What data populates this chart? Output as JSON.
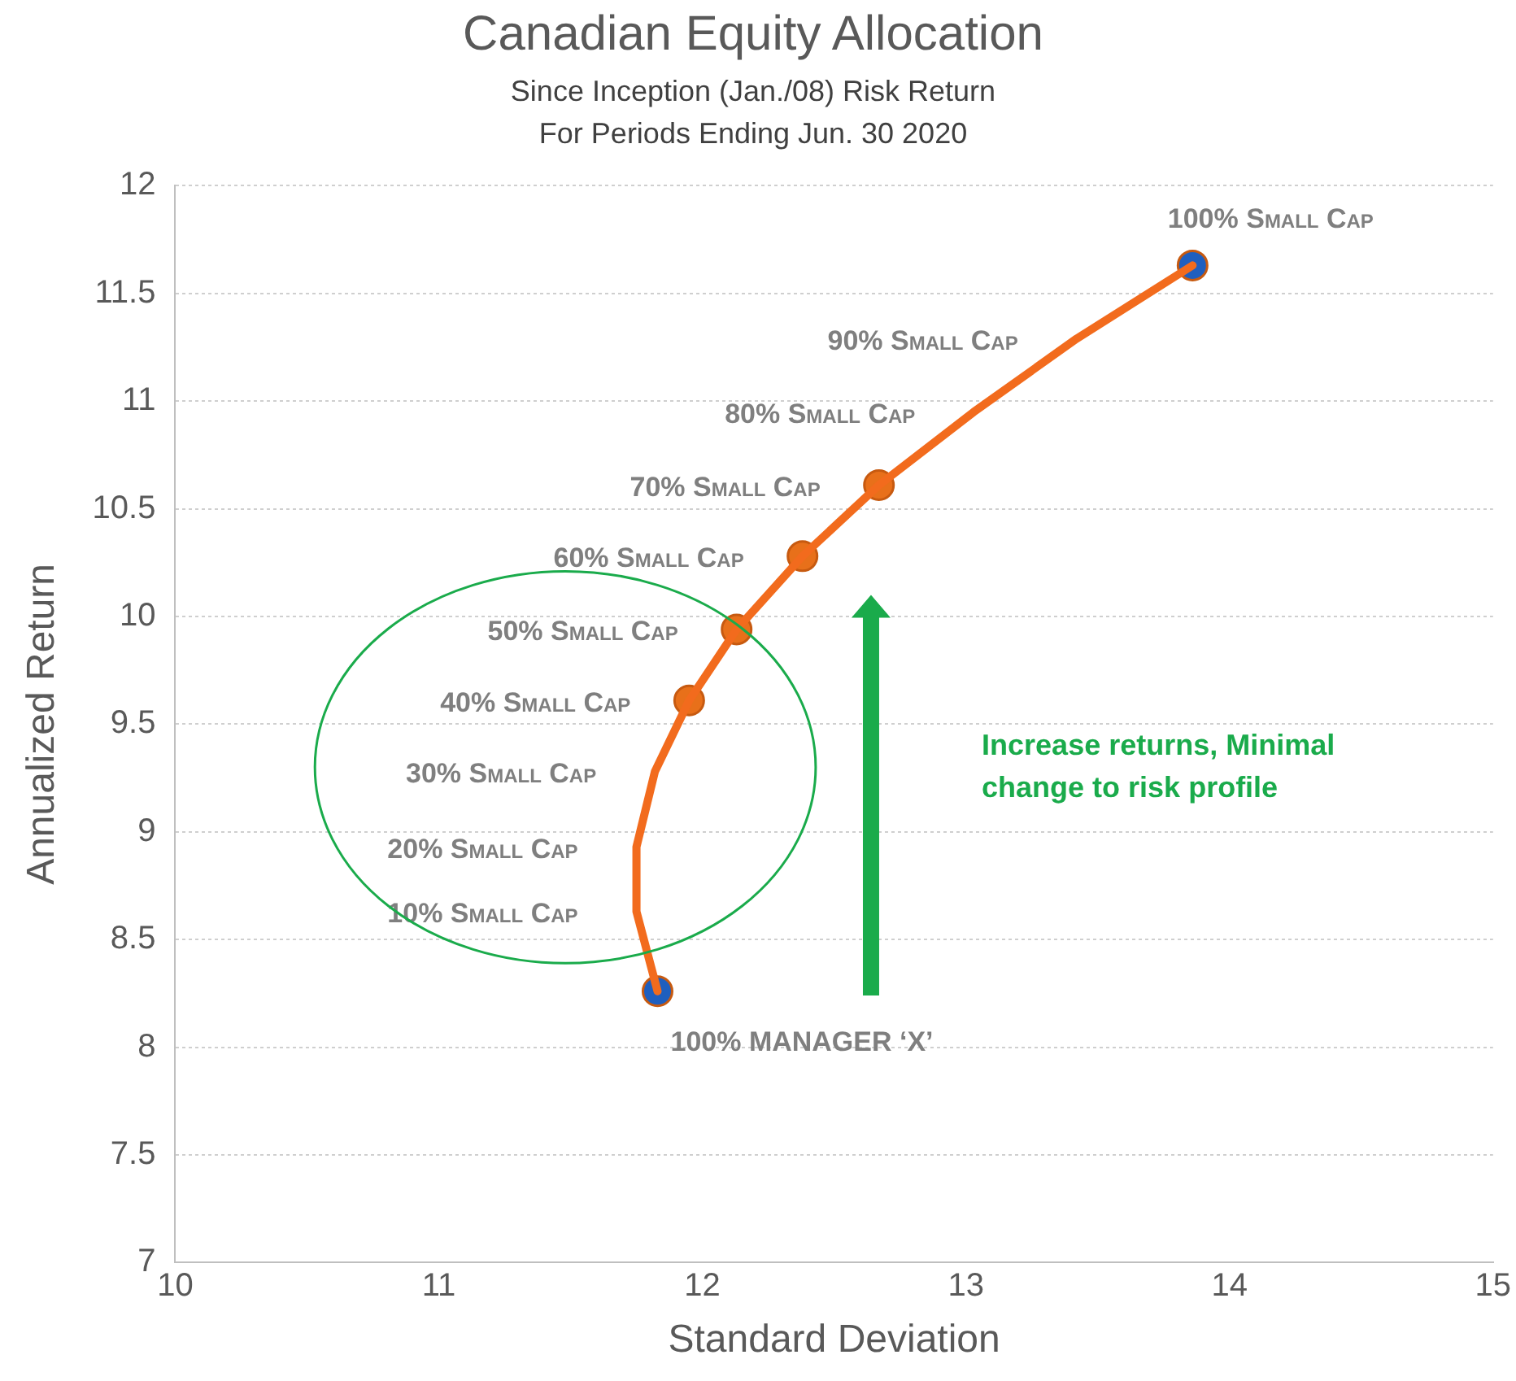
{
  "chart_data": {
    "type": "line",
    "title": "Canadian Equity Allocation",
    "subtitle": "Since Inception (Jan./08) Risk Return\nFor Periods Ending Jun. 30 2020",
    "xlabel": "Standard Deviation",
    "ylabel": "Annualized Return",
    "x": [
      11.83,
      11.75,
      11.75,
      11.82,
      11.95,
      12.13,
      12.38,
      12.67,
      13.03,
      13.42,
      13.86
    ],
    "series": [
      {
        "color": "#f26b1d",
        "marker": "none",
        "values": [
          8.26,
          8.63,
          8.93,
          9.28,
          9.61,
          9.94,
          10.28,
          10.61,
          10.95,
          11.29,
          11.63
        ]
      },
      {
        "type": "scatter",
        "marker": "circle",
        "x": [
          11.83,
          11.95,
          12.13,
          12.38,
          12.67,
          13.86
        ],
        "colors": [
          "#1f5fbf",
          "#e8701a",
          "#e8701a",
          "#e8701a",
          "#e8701a",
          "#1f5fbf"
        ],
        "values": [
          8.26,
          9.61,
          9.94,
          10.28,
          10.61,
          11.63
        ]
      }
    ],
    "xlim": [
      10,
      15
    ],
    "xticks": [
      10,
      11,
      12,
      13,
      14,
      15
    ],
    "ylim": [
      7,
      12
    ],
    "yticks": [
      7,
      7.5,
      8,
      8.5,
      9,
      9.5,
      10,
      10.5,
      11,
      11.5,
      12
    ],
    "grid": "y",
    "legend": false,
    "line_style": "solid",
    "annotations": [
      {
        "text": "100% MANAGER ‘X’",
        "x": 11.83,
        "y": 8.26
      },
      {
        "text": "10% Small Cap",
        "x": 11.75,
        "y": 8.63
      },
      {
        "text": "20% Small Cap",
        "x": 11.75,
        "y": 8.93
      },
      {
        "text": "30% Small Cap",
        "x": 11.82,
        "y": 9.28
      },
      {
        "text": "40% Small Cap",
        "x": 11.95,
        "y": 9.61
      },
      {
        "text": "50% Small Cap",
        "x": 12.13,
        "y": 9.94
      },
      {
        "text": "60% Small Cap",
        "x": 12.38,
        "y": 10.28
      },
      {
        "text": "70% Small Cap",
        "x": 12.67,
        "y": 10.61
      },
      {
        "text": "80% Small Cap",
        "x": 13.03,
        "y": 10.95
      },
      {
        "text": "90% Small Cap",
        "x": 13.42,
        "y": 11.29
      },
      {
        "text": "100% Small Cap",
        "x": 13.86,
        "y": 11.63
      },
      "Increase returns, Minimal change to risk profile"
    ]
  }
}
